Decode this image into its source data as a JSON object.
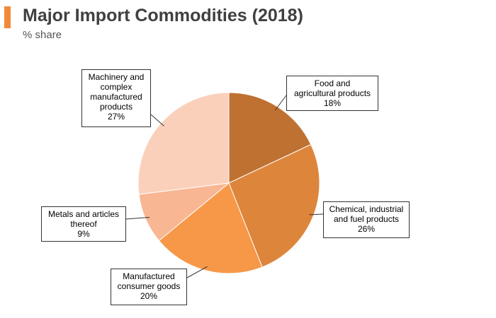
{
  "header": {
    "title": "Major Import Commodities (2018)",
    "subtitle": "% share",
    "accent_color": "#f08a3a"
  },
  "chart_data": {
    "type": "pie",
    "title": "Major Import Commodities (2018)",
    "subtitle": "% share",
    "unit": "%",
    "slices": [
      {
        "label_lines": [
          "Food and",
          "agricultural products"
        ],
        "value": 18,
        "value_label": "18%",
        "color": "#bf7132"
      },
      {
        "label_lines": [
          "Chemical, industrial",
          "and fuel products"
        ],
        "value": 26,
        "value_label": "26%",
        "color": "#de853c"
      },
      {
        "label_lines": [
          "Manufactured",
          "consumer goods"
        ],
        "value": 20,
        "value_label": "20%",
        "color": "#f69848"
      },
      {
        "label_lines": [
          "Metals and articles",
          "thereof"
        ],
        "value": 9,
        "value_label": "9%",
        "color": "#f8b692"
      },
      {
        "label_lines": [
          "Machinery and",
          "complex",
          "manufactured",
          "products"
        ],
        "value": 27,
        "value_label": "27%",
        "color": "#fbd0bb"
      }
    ]
  }
}
